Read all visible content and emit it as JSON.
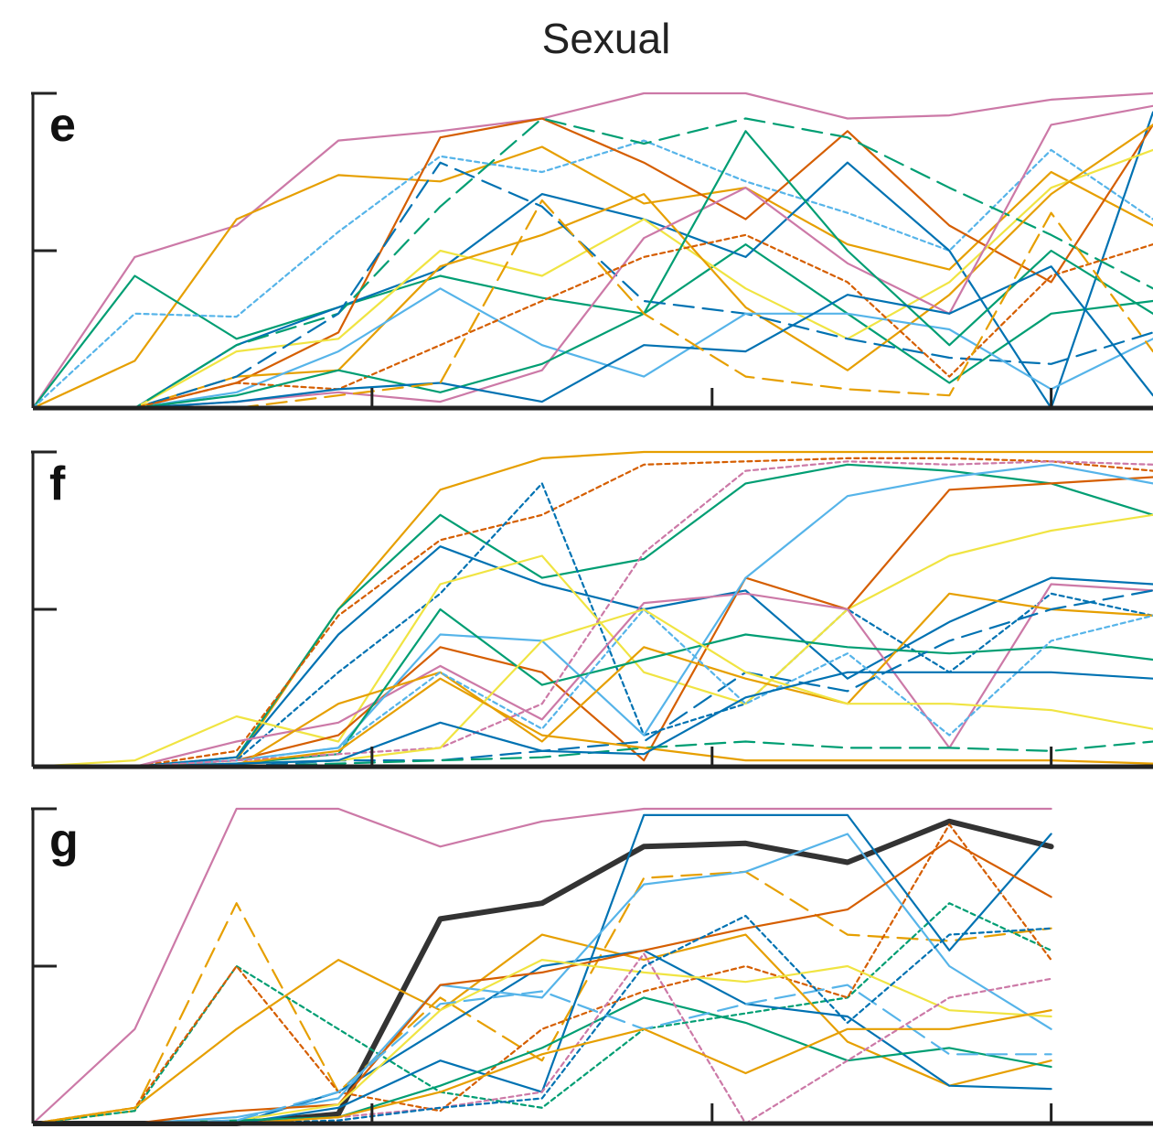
{
  "title": "Sexual",
  "chart_data": [
    {
      "type": "line",
      "panel": "e",
      "x": [
        0,
        1,
        2,
        3,
        4,
        5,
        6,
        7,
        8,
        9,
        10,
        11
      ],
      "ylim": [
        0,
        1
      ],
      "xlim": [
        0,
        11
      ],
      "xlabel": "",
      "ylabel": "",
      "xticks": [
        0,
        3.33,
        6.67,
        10
      ],
      "yticks": [
        0.5,
        1
      ],
      "tick_labels_shown": false,
      "grid": false,
      "legend": "none",
      "series": [
        {
          "color": "#cc79a7",
          "dash": "solid",
          "values": [
            0,
            0.48,
            0.58,
            0.85,
            0.88,
            0.92,
            1.0,
            1.0,
            0.92,
            0.93,
            0.98,
            1.0
          ]
        },
        {
          "color": "#e69f00",
          "dash": "solid",
          "values": [
            0,
            0.15,
            0.6,
            0.74,
            0.72,
            0.83,
            0.65,
            0.7,
            0.52,
            0.44,
            0.75,
            0.58
          ]
        },
        {
          "color": "#009e73",
          "dash": "solid",
          "values": [
            0,
            0.42,
            0.22,
            0.32,
            0.42,
            0.35,
            0.3,
            0.52,
            0.3,
            0.08,
            0.3,
            0.34
          ]
        },
        {
          "color": "#56b4e9",
          "dash": "dot",
          "values": [
            0,
            0.3,
            0.29,
            0.56,
            0.8,
            0.75,
            0.85,
            0.72,
            0.62,
            0.5,
            0.82,
            0.6
          ]
        },
        {
          "color": "#0072b2",
          "dash": "solid",
          "values": [
            0,
            0,
            0.2,
            0.32,
            0.44,
            0.68,
            0.6,
            0.48,
            0.78,
            0.5,
            0,
            0.94
          ]
        },
        {
          "color": "#d55e00",
          "dash": "solid",
          "values": [
            0,
            0,
            0.08,
            0.24,
            0.86,
            0.92,
            0.78,
            0.6,
            0.88,
            0.58,
            0.4,
            0.9
          ]
        },
        {
          "color": "#f0e442",
          "dash": "solid",
          "values": [
            0,
            0,
            0.18,
            0.22,
            0.5,
            0.42,
            0.6,
            0.38,
            0.22,
            0.4,
            0.7,
            0.82
          ]
        },
        {
          "color": "#009e73",
          "dash": "dash",
          "values": [
            0,
            0,
            0.2,
            0.3,
            0.64,
            0.92,
            0.84,
            0.92,
            0.86,
            0.7,
            0.55,
            0.38
          ]
        },
        {
          "color": "#e69f00",
          "dash": "solid",
          "values": [
            0,
            0,
            0.1,
            0.12,
            0.45,
            0.55,
            0.68,
            0.32,
            0.12,
            0.36,
            0.68,
            0.9
          ]
        },
        {
          "color": "#0072b2",
          "dash": "dash",
          "values": [
            0,
            0,
            0.1,
            0.3,
            0.78,
            0.64,
            0.34,
            0.3,
            0.22,
            0.16,
            0.14,
            0.24
          ]
        },
        {
          "color": "#56b4e9",
          "dash": "solid",
          "values": [
            0,
            0,
            0.05,
            0.18,
            0.38,
            0.2,
            0.1,
            0.3,
            0.3,
            0.25,
            0.06,
            0.22
          ]
        },
        {
          "color": "#cc79a7",
          "dash": "solid",
          "values": [
            0,
            0,
            0.02,
            0.05,
            0.02,
            0.12,
            0.54,
            0.7,
            0.46,
            0.3,
            0.9,
            0.96
          ]
        },
        {
          "color": "#d55e00",
          "dash": "dot",
          "values": [
            0,
            0,
            0.08,
            0.06,
            0.2,
            0.34,
            0.48,
            0.55,
            0.4,
            0.1,
            0.42,
            0.52
          ]
        },
        {
          "color": "#009e73",
          "dash": "solid",
          "values": [
            0,
            0,
            0.04,
            0.12,
            0.05,
            0.14,
            0.3,
            0.88,
            0.5,
            0.2,
            0.5,
            0.3
          ]
        },
        {
          "color": "#0072b2",
          "dash": "solid",
          "values": [
            0,
            0,
            0.02,
            0.06,
            0.08,
            0.02,
            0.2,
            0.18,
            0.36,
            0.3,
            0.45,
            0.04
          ]
        },
        {
          "color": "#e69f00",
          "dash": "dash",
          "values": [
            0,
            0,
            0,
            0.04,
            0.08,
            0.66,
            0.3,
            0.1,
            0.06,
            0.04,
            0.62,
            0.18
          ]
        }
      ]
    },
    {
      "type": "line",
      "panel": "f",
      "x": [
        0,
        1,
        2,
        3,
        4,
        5,
        6,
        7,
        8,
        9,
        10,
        11
      ],
      "ylim": [
        0,
        1
      ],
      "xlim": [
        0,
        11
      ],
      "xlabel": "",
      "ylabel": "",
      "xticks": [
        0,
        3.33,
        6.67,
        10
      ],
      "yticks": [
        0.5,
        1
      ],
      "tick_labels_shown": false,
      "grid": false,
      "legend": "none",
      "series": [
        {
          "color": "#e69f00",
          "dash": "solid",
          "values": [
            0,
            0,
            0.02,
            0.5,
            0.88,
            0.98,
            1.0,
            1.0,
            1.0,
            1.0,
            1.0,
            1.0
          ]
        },
        {
          "color": "#009e73",
          "dash": "solid",
          "values": [
            0,
            0,
            0.03,
            0.5,
            0.8,
            0.6,
            0.66,
            0.9,
            0.96,
            0.94,
            0.9,
            0.8
          ]
        },
        {
          "color": "#d55e00",
          "dash": "dot",
          "values": [
            0,
            0,
            0.05,
            0.48,
            0.72,
            0.8,
            0.96,
            0.97,
            0.98,
            0.98,
            0.97,
            0.94
          ]
        },
        {
          "color": "#0072b2",
          "dash": "dot",
          "values": [
            0,
            0,
            0.02,
            0.3,
            0.55,
            0.9,
            0.1,
            0.2,
            0.5,
            0.3,
            0.55,
            0.48
          ]
        },
        {
          "color": "#0072b2",
          "dash": "solid",
          "values": [
            0,
            0,
            0.03,
            0.42,
            0.7,
            0.58,
            0.5,
            0.56,
            0.28,
            0.46,
            0.6,
            0.58
          ]
        },
        {
          "color": "#f0e442",
          "dash": "solid",
          "values": [
            0,
            0.02,
            0.16,
            0.08,
            0.58,
            0.67,
            0.3,
            0.2,
            0.5,
            0.67,
            0.75,
            0.8
          ]
        },
        {
          "color": "#d55e00",
          "dash": "solid",
          "values": [
            0,
            0,
            0.02,
            0.1,
            0.38,
            0.3,
            0.02,
            0.6,
            0.5,
            0.88,
            0.9,
            0.92
          ]
        },
        {
          "color": "#cc79a7",
          "dash": "solid",
          "values": [
            0,
            0,
            0.08,
            0.14,
            0.32,
            0.15,
            0.52,
            0.55,
            0.5,
            0.06,
            0.58,
            0.56
          ]
        },
        {
          "color": "#56b4e9",
          "dash": "solid",
          "values": [
            0,
            0,
            0.02,
            0.06,
            0.42,
            0.4,
            0.1,
            0.6,
            0.86,
            0.92,
            0.96,
            0.9
          ]
        },
        {
          "color": "#e69f00",
          "dash": "solid",
          "values": [
            0,
            0,
            0,
            0.2,
            0.3,
            0.08,
            0.38,
            0.28,
            0.2,
            0.55,
            0.5,
            0.48
          ]
        },
        {
          "color": "#009e73",
          "dash": "solid",
          "values": [
            0,
            0,
            0.01,
            0.04,
            0.5,
            0.26,
            0.34,
            0.42,
            0.38,
            0.36,
            0.38,
            0.34
          ]
        },
        {
          "color": "#0072b2",
          "dash": "dash",
          "values": [
            0,
            0,
            0,
            0.02,
            0.02,
            0.05,
            0.08,
            0.3,
            0.24,
            0.4,
            0.5,
            0.56
          ]
        },
        {
          "color": "#56b4e9",
          "dash": "dot",
          "values": [
            0,
            0,
            0.02,
            0.06,
            0.3,
            0.12,
            0.5,
            0.2,
            0.36,
            0.1,
            0.4,
            0.48
          ]
        },
        {
          "color": "#cc79a7",
          "dash": "dot",
          "values": [
            0,
            0,
            0.02,
            0.04,
            0.06,
            0.2,
            0.68,
            0.94,
            0.97,
            0.96,
            0.97,
            0.96
          ]
        },
        {
          "color": "#f0e442",
          "dash": "solid",
          "values": [
            0,
            0,
            0.01,
            0.02,
            0.06,
            0.4,
            0.5,
            0.3,
            0.2,
            0.2,
            0.18,
            0.12
          ]
        },
        {
          "color": "#009e73",
          "dash": "dash",
          "values": [
            0,
            0,
            0,
            0.01,
            0.02,
            0.03,
            0.06,
            0.08,
            0.06,
            0.06,
            0.05,
            0.08
          ]
        },
        {
          "color": "#e69f00",
          "dash": "solid",
          "values": [
            0,
            0,
            0.01,
            0.05,
            0.28,
            0.1,
            0.06,
            0.02,
            0.02,
            0.02,
            0.02,
            0.01
          ]
        },
        {
          "color": "#0072b2",
          "dash": "solid",
          "values": [
            0,
            0,
            0.01,
            0.02,
            0.14,
            0.05,
            0.04,
            0.22,
            0.3,
            0.3,
            0.3,
            0.28
          ]
        }
      ]
    },
    {
      "type": "line",
      "panel": "g",
      "x": [
        0,
        1,
        2,
        3,
        4,
        5,
        6,
        7,
        8,
        9,
        10
      ],
      "ylim": [
        0,
        1
      ],
      "xlim": [
        0,
        11
      ],
      "xlabel": "",
      "ylabel": "",
      "xticks": [
        0,
        3.33,
        6.67,
        10
      ],
      "yticks": [
        0.5,
        1
      ],
      "tick_labels_shown": false,
      "grid": false,
      "legend": "none",
      "series": [
        {
          "color": "#cc79a7",
          "dash": "solid",
          "values": [
            0,
            0.3,
            1.0,
            1.0,
            0.88,
            0.96,
            1.0,
            1.0,
            1.0,
            1.0,
            1.0
          ]
        },
        {
          "color": "#333333",
          "dash": "solid",
          "bold": true,
          "values": [
            0,
            0,
            0,
            0.03,
            0.65,
            0.7,
            0.88,
            0.89,
            0.83,
            0.96,
            0.88
          ]
        },
        {
          "color": "#e69f00",
          "dash": "dash",
          "values": [
            0,
            0.04,
            0.7,
            0.1,
            0.4,
            0.2,
            0.78,
            0.8,
            0.6,
            0.58,
            0.62
          ]
        },
        {
          "color": "#009e73",
          "dash": "dot",
          "values": [
            0,
            0.04,
            0.5,
            0.3,
            0.1,
            0.05,
            0.3,
            0.35,
            0.4,
            0.7,
            0.55
          ]
        },
        {
          "color": "#d55e00",
          "dash": "dot",
          "values": [
            0,
            0.05,
            0.5,
            0.1,
            0.04,
            0.3,
            0.42,
            0.5,
            0.4,
            0.95,
            0.52
          ]
        },
        {
          "color": "#e69f00",
          "dash": "solid",
          "values": [
            0,
            0.05,
            0.3,
            0.52,
            0.36,
            0.6,
            0.52,
            0.6,
            0.26,
            0.12,
            0.2
          ]
        },
        {
          "color": "#0072b2",
          "dash": "solid",
          "values": [
            0,
            0,
            0,
            0.1,
            0.3,
            0.5,
            0.55,
            0.38,
            0.34,
            0.12,
            0.11
          ]
        },
        {
          "color": "#0072b2",
          "dash": "solid",
          "values": [
            0,
            0,
            0,
            0.05,
            0.2,
            0.1,
            0.98,
            0.98,
            0.98,
            0.55,
            0.92
          ]
        },
        {
          "color": "#56b4e9",
          "dash": "solid",
          "values": [
            0,
            0,
            0.02,
            0.08,
            0.44,
            0.4,
            0.76,
            0.8,
            0.92,
            0.5,
            0.3
          ]
        },
        {
          "color": "#d55e00",
          "dash": "solid",
          "values": [
            0,
            0,
            0.04,
            0.06,
            0.44,
            0.48,
            0.55,
            0.62,
            0.68,
            0.9,
            0.72
          ]
        },
        {
          "color": "#f0e442",
          "dash": "solid",
          "values": [
            0,
            0,
            0.01,
            0.06,
            0.36,
            0.52,
            0.48,
            0.45,
            0.5,
            0.36,
            0.34
          ]
        },
        {
          "color": "#009e73",
          "dash": "solid",
          "values": [
            0,
            0,
            0.01,
            0.02,
            0.12,
            0.24,
            0.4,
            0.32,
            0.2,
            0.24,
            0.18
          ]
        },
        {
          "color": "#cc79a7",
          "dash": "dot",
          "values": [
            0,
            0,
            0,
            0.02,
            0.05,
            0.1,
            0.54,
            0.0,
            0.2,
            0.4,
            0.46
          ]
        },
        {
          "color": "#56b4e9",
          "dash": "dash",
          "values": [
            0,
            0,
            0.01,
            0.1,
            0.38,
            0.42,
            0.3,
            0.38,
            0.44,
            0.22,
            0.22
          ]
        },
        {
          "color": "#0072b2",
          "dash": "dot",
          "values": [
            0,
            0,
            0,
            0.01,
            0.05,
            0.08,
            0.5,
            0.66,
            0.32,
            0.6,
            0.62
          ]
        },
        {
          "color": "#e69f00",
          "dash": "solid",
          "values": [
            0,
            0,
            0,
            0.02,
            0.1,
            0.22,
            0.3,
            0.16,
            0.3,
            0.3,
            0.36
          ]
        }
      ]
    }
  ]
}
